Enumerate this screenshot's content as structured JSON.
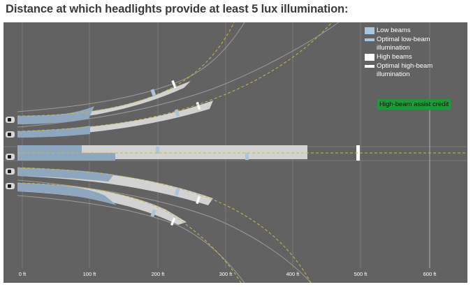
{
  "title": "Distance at which headlights provide at least 5 lux illumination:",
  "legend": {
    "low_beams": "Low beams",
    "optimal_low": "Optimal low-beam illumination",
    "high_beams": "High beams",
    "optimal_high": "Optimal high-beam illumination"
  },
  "credit_label": "High-beam assist credit",
  "axis": {
    "unit": "ft",
    "ticks": [
      "0 ft",
      "100 ft",
      "200 ft",
      "300 ft",
      "400 ft",
      "500 ft",
      "600 ft"
    ]
  },
  "colors": {
    "background": "#626262",
    "low_beam": "#a9c6de",
    "low_beam_near": "#8ea6be",
    "high_beam": "#d2d2d2",
    "optimal_high": "#ffffff",
    "credit_green": "#1f9a3b",
    "lane_dash": "#c8b84a"
  },
  "scenarios": [
    {
      "name": "curve-left-sharp",
      "low_end_ft": 100,
      "high_end_ft": 250,
      "optimal_low_ft": 195,
      "optimal_high_ft": 225
    },
    {
      "name": "curve-left-gentle",
      "low_end_ft": 100,
      "high_end_ft": 270,
      "optimal_low_ft": 230,
      "optimal_high_ft": 260
    },
    {
      "name": "straight",
      "low_end_ft": 140,
      "high_end_ft": 420,
      "optimal_low_ft": 330,
      "optimal_high_ft": 500
    },
    {
      "name": "curve-right-gentle",
      "low_end_ft": 130,
      "high_end_ft": 270,
      "optimal_low_ft": 230,
      "optimal_high_ft": 260
    },
    {
      "name": "curve-right-sharp",
      "low_end_ft": 130,
      "high_end_ft": 250,
      "optimal_low_ft": 195,
      "optimal_high_ft": 225
    }
  ]
}
